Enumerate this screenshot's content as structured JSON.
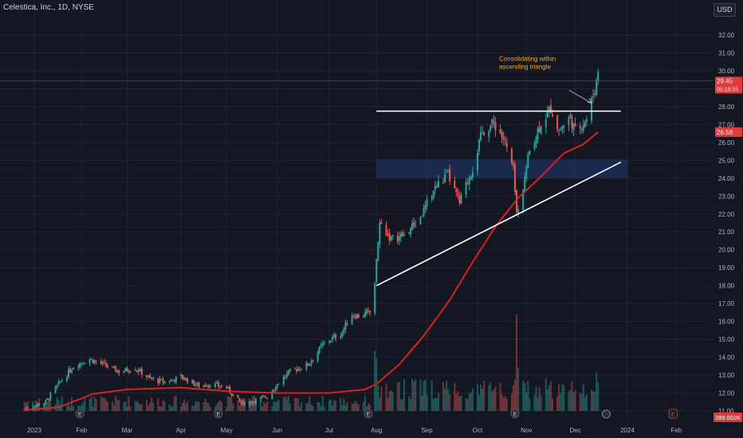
{
  "header": {
    "title": "Celestica, Inc., 1D, NYSE",
    "currency": "USD"
  },
  "colors": {
    "background": "#131722",
    "up": "#26a69a",
    "down": "#ef5350",
    "ma": "#e01e1e",
    "grid": "#1f2433",
    "text": "#b2b5be",
    "zone": "#1f3a73",
    "price_line": "#b32c2c"
  },
  "chart_data": {
    "type": "candlestick",
    "y_ticks": [
      "11.00",
      "12.00",
      "13.00",
      "14.00",
      "15.00",
      "16.00",
      "17.00",
      "18.00",
      "19.00",
      "20.00",
      "21.00",
      "22.00",
      "23.00",
      "24.00",
      "25.00",
      "26.00",
      "27.00",
      "28.00",
      "29.00",
      "30.00",
      "31.00",
      "32.00"
    ],
    "x_ticks": [
      {
        "label": "2023",
        "date": "2023-01-03"
      },
      {
        "label": "Feb",
        "date": "2023-02-01"
      },
      {
        "label": "Mar",
        "date": "2023-03-01"
      },
      {
        "label": "Apr",
        "date": "2023-04-03"
      },
      {
        "label": "May",
        "date": "2023-05-01"
      },
      {
        "label": "Jun",
        "date": "2023-06-01"
      },
      {
        "label": "Jul",
        "date": "2023-07-03"
      },
      {
        "label": "Aug",
        "date": "2023-08-01"
      },
      {
        "label": "Sep",
        "date": "2023-09-01"
      },
      {
        "label": "Oct",
        "date": "2023-10-02"
      },
      {
        "label": "Nov",
        "date": "2023-11-01"
      },
      {
        "label": "Dec",
        "date": "2023-12-01"
      },
      {
        "label": "2024",
        "date": "2024-01-02"
      },
      {
        "label": "Feb",
        "date": "2024-02-01"
      }
    ],
    "price_path": [
      [
        "2022-12-28",
        11.1
      ],
      [
        "2023-01-10",
        11.5
      ],
      [
        "2023-01-18",
        12.5
      ],
      [
        "2023-01-27",
        13.5
      ],
      [
        "2023-02-06",
        13.9
      ],
      [
        "2023-02-14",
        13.6
      ],
      [
        "2023-02-24",
        13.2
      ],
      [
        "2023-03-06",
        13.4
      ],
      [
        "2023-03-15",
        12.8
      ],
      [
        "2023-03-24",
        12.6
      ],
      [
        "2023-04-03",
        12.9
      ],
      [
        "2023-04-14",
        12.4
      ],
      [
        "2023-04-21",
        12.5
      ],
      [
        "2023-05-01",
        12.3
      ],
      [
        "2023-05-10",
        11.4
      ],
      [
        "2023-05-19",
        11.6
      ],
      [
        "2023-05-26",
        11.8
      ],
      [
        "2023-06-02",
        12.6
      ],
      [
        "2023-06-09",
        13.2
      ],
      [
        "2023-06-20",
        13.6
      ],
      [
        "2023-06-30",
        14.8
      ],
      [
        "2023-07-10",
        15.3
      ],
      [
        "2023-07-17",
        16.4
      ],
      [
        "2023-07-21",
        16.3
      ],
      [
        "2023-07-28",
        16.5
      ],
      [
        "2023-07-31",
        18.2
      ],
      [
        "2023-08-03",
        21.5
      ],
      [
        "2023-08-10",
        20.6
      ],
      [
        "2023-08-18",
        20.8
      ],
      [
        "2023-08-28",
        21.8
      ],
      [
        "2023-09-06",
        23.5
      ],
      [
        "2023-09-14",
        24.2
      ],
      [
        "2023-09-21",
        22.6
      ],
      [
        "2023-09-29",
        24.6
      ],
      [
        "2023-10-05",
        26.6
      ],
      [
        "2023-10-12",
        27.1
      ],
      [
        "2023-10-18",
        26.2
      ],
      [
        "2023-10-24",
        24.4
      ],
      [
        "2023-10-26",
        22.0
      ],
      [
        "2023-10-30",
        23.6
      ],
      [
        "2023-11-03",
        25.6
      ],
      [
        "2023-11-10",
        27.1
      ],
      [
        "2023-11-16",
        27.9
      ],
      [
        "2023-11-21",
        26.7
      ],
      [
        "2023-11-28",
        27.4
      ],
      [
        "2023-12-01",
        26.6
      ],
      [
        "2023-12-06",
        27.1
      ],
      [
        "2023-12-08",
        27.3
      ],
      [
        "2023-12-12",
        28.6
      ],
      [
        "2023-12-15",
        29.8
      ]
    ],
    "ma_series": [
      [
        "2022-12-28",
        11.05
      ],
      [
        "2023-01-18",
        11.2
      ],
      [
        "2023-02-08",
        11.95
      ],
      [
        "2023-03-01",
        12.2
      ],
      [
        "2023-04-03",
        12.3
      ],
      [
        "2023-05-01",
        12.1
      ],
      [
        "2023-06-01",
        12.0
      ],
      [
        "2023-07-03",
        12.0
      ],
      [
        "2023-07-25",
        12.2
      ],
      [
        "2023-08-01",
        12.5
      ],
      [
        "2023-08-15",
        13.6
      ],
      [
        "2023-08-30",
        15.2
      ],
      [
        "2023-09-15",
        17.2
      ],
      [
        "2023-09-29",
        19.3
      ],
      [
        "2023-10-13",
        21.3
      ],
      [
        "2023-10-27",
        22.9
      ],
      [
        "2023-11-10",
        24.1
      ],
      [
        "2023-11-24",
        25.4
      ],
      [
        "2023-12-06",
        25.9
      ],
      [
        "2023-12-15",
        26.58
      ]
    ],
    "volume_range": [
      0.1,
      1.0
    ],
    "volume_spikes": [
      [
        "2023-07-31",
        0.62
      ],
      [
        "2023-08-01",
        0.55
      ],
      [
        "2023-10-26",
        1.0
      ],
      [
        "2023-10-27",
        0.45
      ],
      [
        "2023-12-14",
        0.4
      ]
    ],
    "last_price": {
      "value": 29.45,
      "label": "29.45",
      "countdown": "05:18:55"
    },
    "ma_last": {
      "value": 26.58,
      "label": "26.58"
    },
    "volume_last": {
      "label": "289.602K"
    },
    "annotation": {
      "text_line1": "Consolidating within",
      "text_line2": "ascending triangle",
      "color": "#f5a623",
      "arrow_to": [
        "2023-12-11",
        28.2
      ]
    },
    "lines": {
      "resistance": {
        "from": [
          "2023-08-01",
          27.75
        ],
        "to": [
          "2023-12-29",
          27.75
        ]
      },
      "support": {
        "from": [
          "2023-08-01",
          18.0
        ],
        "to": [
          "2023-12-29",
          24.9
        ]
      }
    },
    "zone": {
      "from": "2023-08-01",
      "to": "2024-01-02",
      "y_low": 24.0,
      "y_high": 25.05
    },
    "earnings_markers": [
      "2023-01-31",
      "2023-04-26",
      "2023-07-27",
      "2023-10-25"
    ],
    "dividend_marker": "2023-12-20",
    "future_earnings": "2024-01-30"
  }
}
